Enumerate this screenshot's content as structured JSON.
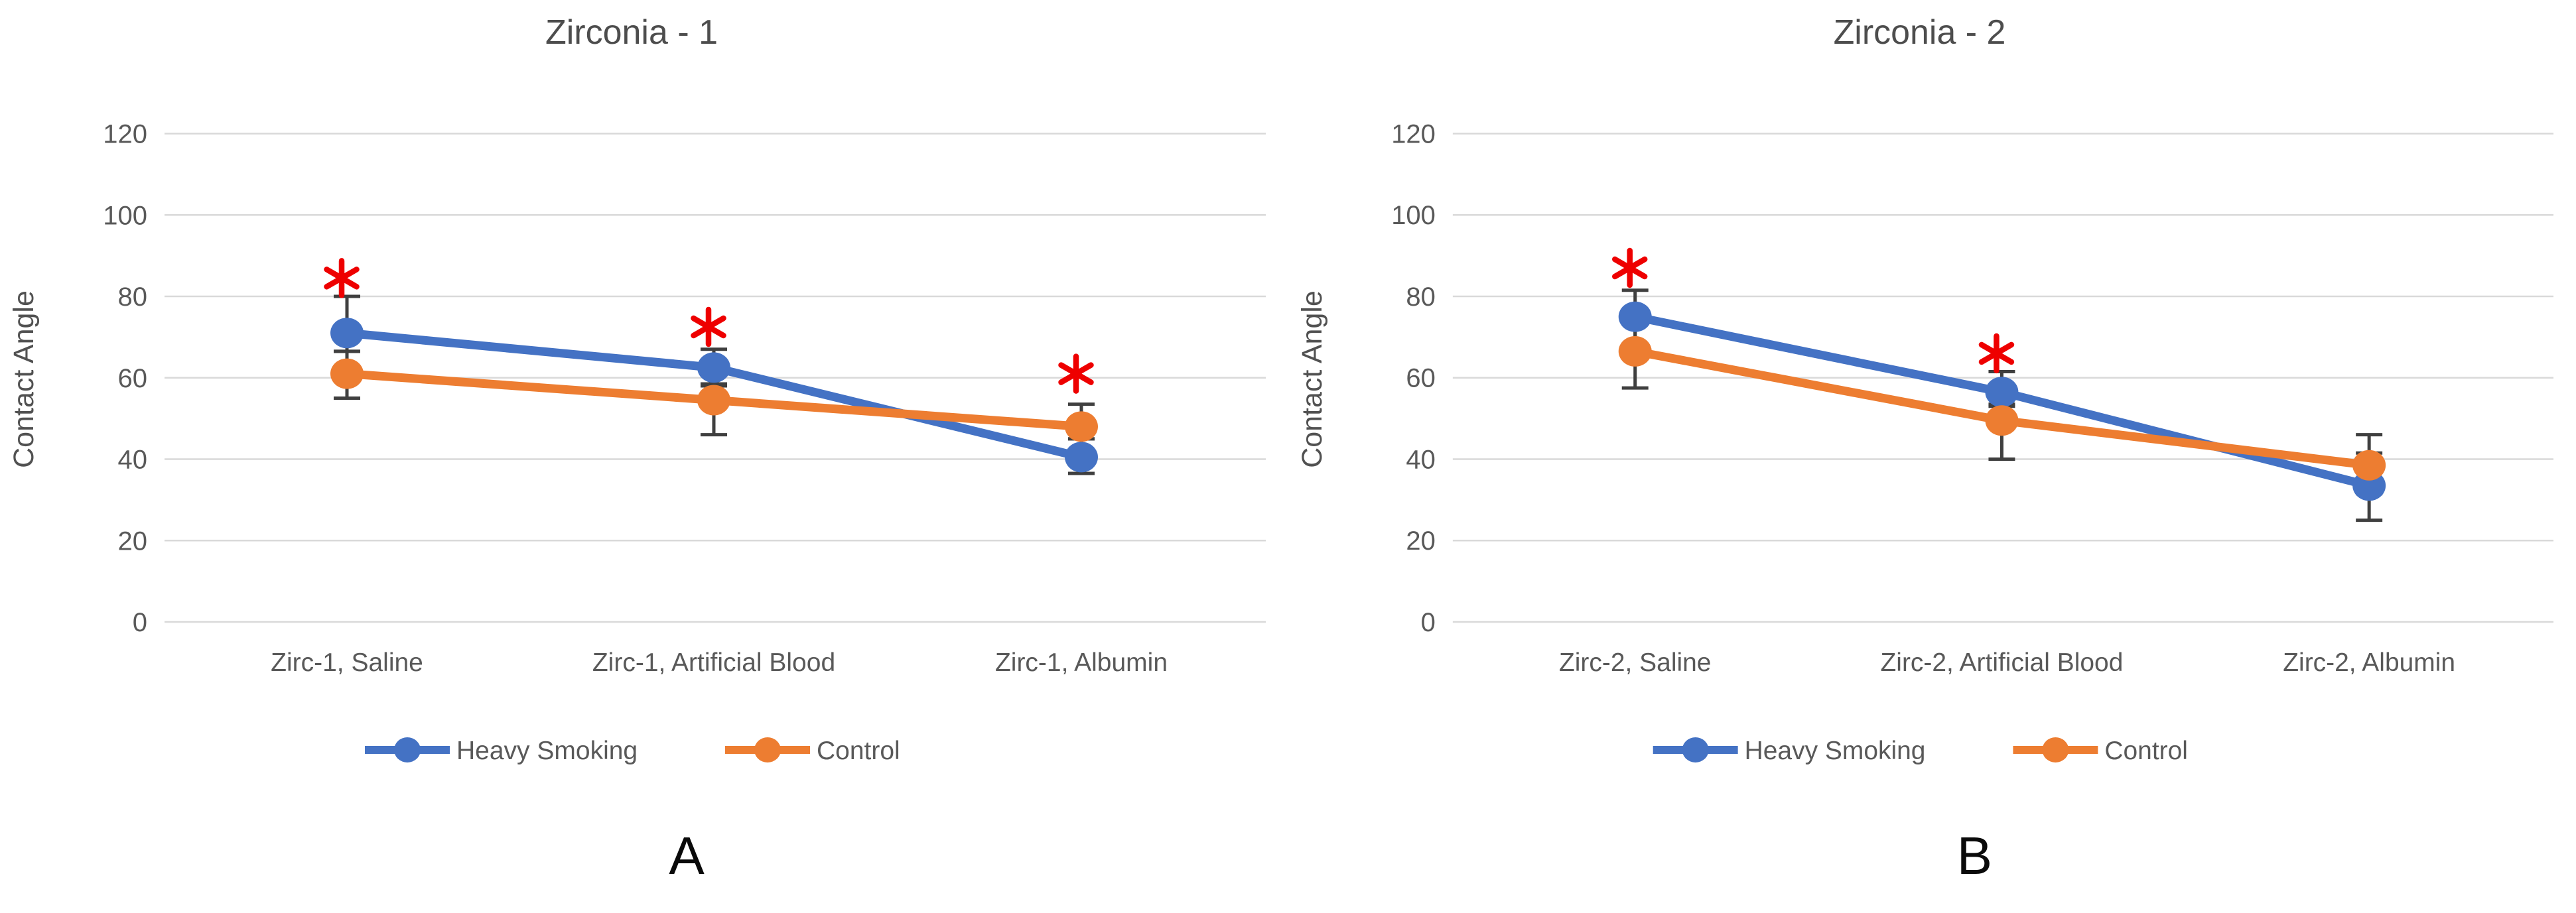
{
  "figure": {
    "background": "#ffffff",
    "panels": [
      "A",
      "B"
    ]
  },
  "colors": {
    "heavy_smoking": "#4472C4",
    "control": "#ED7D31",
    "gridline": "#D9D9D9",
    "axis_text": "#595959",
    "error_bar": "#3F3F3F",
    "significance": "#EE0000",
    "title_text": "#4D4D4D"
  },
  "chart_data": [
    {
      "type": "line",
      "title": "Zirconia - 1",
      "ylabel": "Contact Angle",
      "xlabel": "",
      "panel_label": "A",
      "categories": [
        "Zirc-1, Saline",
        "Zirc-1, Artificial Blood",
        "Zirc-1, Albumin"
      ],
      "yticks": [
        0,
        20,
        40,
        60,
        80,
        100,
        120
      ],
      "ylim": [
        0,
        130
      ],
      "grid": true,
      "legend_position": "bottom",
      "series": [
        {
          "name": "Heavy Smoking",
          "color": "#4472C4",
          "values": [
            71,
            62.5,
            40.5
          ],
          "error_low": [
            66.5,
            58,
            36.5
          ],
          "error_high": [
            80,
            67,
            45
          ]
        },
        {
          "name": "Control",
          "color": "#ED7D31",
          "values": [
            61,
            54.5,
            48
          ],
          "error_low": [
            55,
            46,
            45
          ],
          "error_high": [
            66.5,
            58.5,
            53.5
          ]
        }
      ],
      "significance_markers": [
        {
          "category_index": 0,
          "symbol": "*",
          "y": 84.5
        },
        {
          "category_index": 1,
          "symbol": "*",
          "y": 72.5
        },
        {
          "category_index": 2,
          "symbol": "*",
          "y": 61
        }
      ]
    },
    {
      "type": "line",
      "title": "Zirconia - 2",
      "ylabel": "Contact Angle",
      "xlabel": "",
      "panel_label": "B",
      "categories": [
        "Zirc-2, Saline",
        "Zirc-2, Artificial Blood",
        "Zirc-2, Albumin"
      ],
      "yticks": [
        0,
        20,
        40,
        60,
        80,
        100,
        120
      ],
      "ylim": [
        0,
        130
      ],
      "grid": true,
      "legend_position": "bottom",
      "series": [
        {
          "name": "Heavy Smoking",
          "color": "#4472C4",
          "values": [
            75,
            56.5,
            33.5
          ],
          "error_low": [
            67,
            53,
            25
          ],
          "error_high": [
            81.5,
            61.5,
            41.5
          ]
        },
        {
          "name": "Control",
          "color": "#ED7D31",
          "values": [
            66.5,
            49.5,
            38.5
          ],
          "error_low": [
            57.5,
            40,
            31.5
          ],
          "error_high": [
            75,
            53.5,
            46
          ]
        }
      ],
      "significance_markers": [
        {
          "category_index": 0,
          "symbol": "*",
          "y": 87
        },
        {
          "category_index": 1,
          "symbol": "*",
          "y": 66
        }
      ]
    }
  ]
}
